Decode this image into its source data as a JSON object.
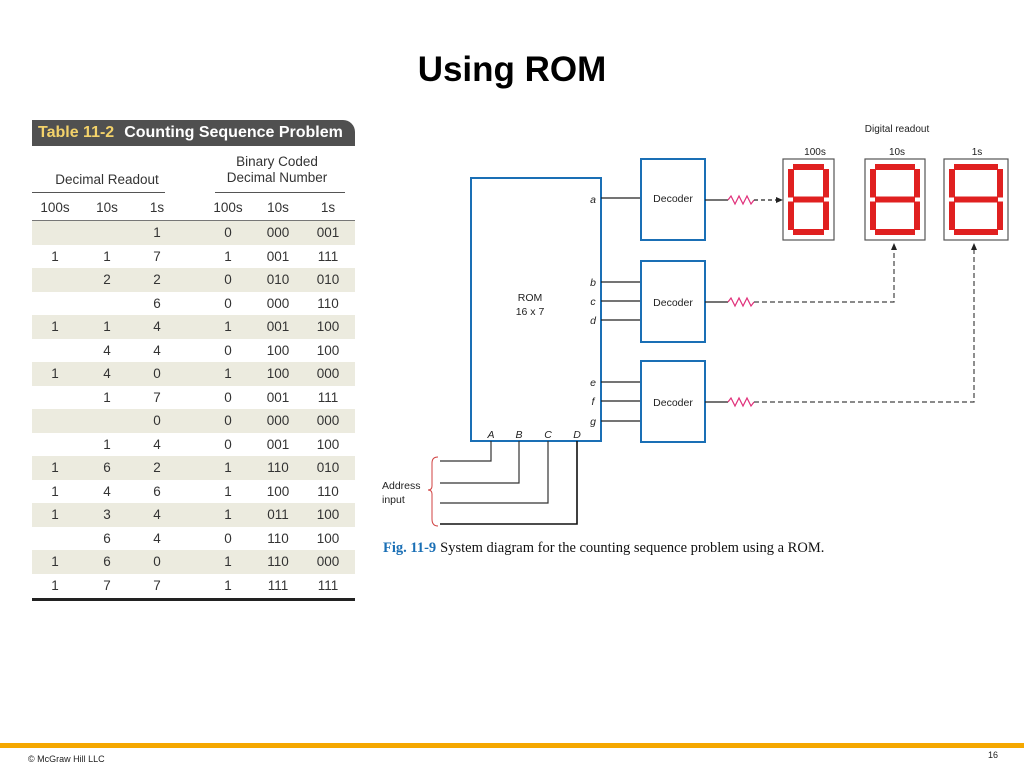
{
  "slide": {
    "title": "Using ROM",
    "footer": "© McGraw Hill LLC",
    "page_number": "16"
  },
  "table": {
    "number": "Table 11-2",
    "title": "Counting Sequence Problem",
    "group_decimal": "Decimal Readout",
    "group_bcd_line1": "Binary Coded",
    "group_bcd_line2": "Decimal Number",
    "columns": [
      "100s",
      "10s",
      "1s",
      "100s",
      "10s",
      "1s"
    ],
    "rows": [
      [
        "",
        "",
        "1",
        "0",
        "000",
        "001"
      ],
      [
        "1",
        "1",
        "7",
        "1",
        "001",
        "111"
      ],
      [
        "",
        "2",
        "2",
        "0",
        "010",
        "010"
      ],
      [
        "",
        "",
        "6",
        "0",
        "000",
        "110"
      ],
      [
        "1",
        "1",
        "4",
        "1",
        "001",
        "100"
      ],
      [
        "",
        "4",
        "4",
        "0",
        "100",
        "100"
      ],
      [
        "1",
        "4",
        "0",
        "1",
        "100",
        "000"
      ],
      [
        "",
        "1",
        "7",
        "0",
        "001",
        "111"
      ],
      [
        "",
        "",
        "0",
        "0",
        "000",
        "000"
      ],
      [
        "",
        "1",
        "4",
        "0",
        "001",
        "100"
      ],
      [
        "1",
        "6",
        "2",
        "1",
        "110",
        "010"
      ],
      [
        "1",
        "4",
        "6",
        "1",
        "100",
        "110"
      ],
      [
        "1",
        "3",
        "4",
        "1",
        "011",
        "100"
      ],
      [
        "",
        "6",
        "4",
        "0",
        "110",
        "100"
      ],
      [
        "1",
        "6",
        "0",
        "1",
        "110",
        "000"
      ],
      [
        "1",
        "7",
        "7",
        "1",
        "111",
        "111"
      ]
    ]
  },
  "figure": {
    "digital_readout": "Digital readout",
    "display_labels": [
      "100s",
      "10s",
      "1s"
    ],
    "rom_line1": "ROM",
    "rom_line2": "16 x 7",
    "outputs": [
      "a",
      "b",
      "c",
      "d",
      "e",
      "f",
      "g"
    ],
    "inputs": [
      "A",
      "B",
      "C",
      "D"
    ],
    "decoder_label": "Decoder",
    "address_line1": "Address",
    "address_line2": "input",
    "caption_number": "Fig. 11-9",
    "caption_text": "System diagram for the counting sequence problem using a ROM.",
    "colors": {
      "box": "#1a6fb5",
      "segment": "#e02020",
      "resistor": "#e0307a",
      "brace": "#d04040"
    }
  }
}
